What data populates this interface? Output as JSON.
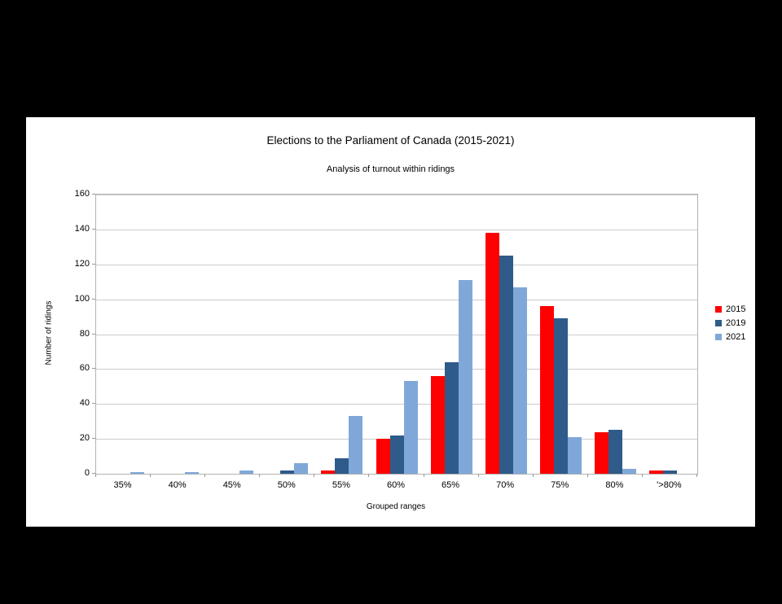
{
  "window": {
    "background_color": "#000000",
    "panel_color": "#ffffff"
  },
  "chart_data": {
    "type": "bar",
    "title": "Elections to the Parliament of Canada (2015-2021)",
    "subtitle": "Analysis of turnout within ridings",
    "xlabel": "Grouped ranges",
    "ylabel": "Number of ridings",
    "ylim": [
      0,
      160
    ],
    "ytick_step": 20,
    "grid": true,
    "legend_position": "right",
    "categories": [
      "35%",
      "40%",
      "45%",
      "50%",
      "55%",
      "60%",
      "65%",
      "70%",
      "75%",
      "80%",
      "'>80%"
    ],
    "series": [
      {
        "name": "2015",
        "color": "#ff0000",
        "values": [
          0,
          0,
          0,
          0,
          2,
          20,
          56,
          138,
          96,
          24,
          2
        ]
      },
      {
        "name": "2019",
        "color": "#2e5b8a",
        "values": [
          0,
          0,
          0,
          2,
          9,
          22,
          64,
          125,
          89,
          25,
          2
        ]
      },
      {
        "name": "2021",
        "color": "#7fa8d8",
        "values": [
          1,
          1,
          2,
          6,
          33,
          53,
          111,
          107,
          21,
          3,
          0
        ]
      }
    ]
  }
}
